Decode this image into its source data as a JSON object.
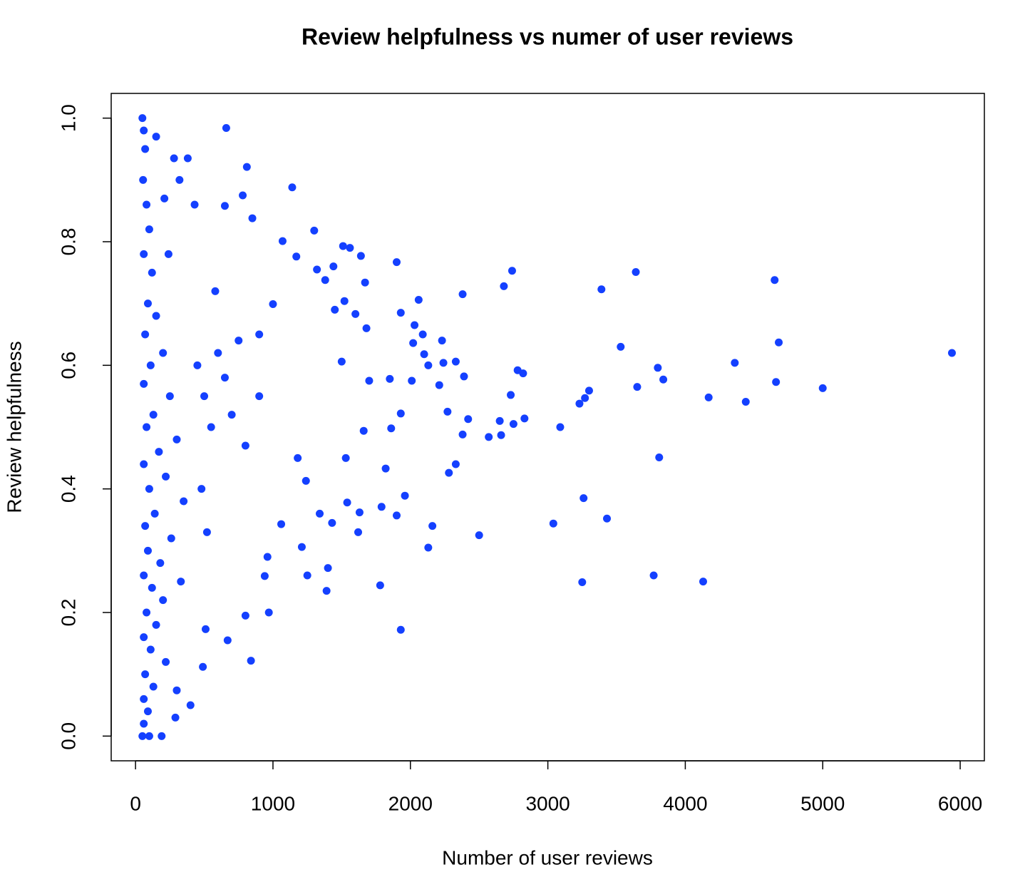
{
  "chart_data": {
    "type": "scatter",
    "title": "Review helpfulness vs numer of user reviews",
    "x_label": "Number of user reviews",
    "y_label": "Review helpfulness",
    "color": "#1440ff",
    "grid": false,
    "xlim": [
      -177,
      6176
    ],
    "ylim": [
      -0.04,
      1.04
    ],
    "xticks": [
      0,
      1000,
      2000,
      3000,
      4000,
      5000,
      6000
    ],
    "yticks": [
      {
        "value": 0,
        "label": "0.0"
      },
      0.2,
      0.4,
      0.6,
      0.8,
      {
        "value": 1,
        "label": "1.0"
      }
    ],
    "x": [
      5940,
      5000,
      4680,
      4650,
      4660,
      4440,
      4360,
      4170,
      4130,
      3840,
      3800,
      3810,
      3770,
      3640,
      3650,
      3530,
      3390,
      3430,
      3300,
      3270,
      3230,
      3260,
      3250,
      3090,
      3040,
      2830,
      2820,
      2780,
      2740,
      2730,
      2750,
      2680,
      2660,
      2650,
      2570,
      2500,
      2420,
      2380,
      2380,
      2390,
      2330,
      2330,
      2280,
      2270,
      2240,
      2230,
      2210,
      2160,
      2130,
      2130,
      2100,
      2090,
      2060,
      2030,
      2020,
      2010,
      1960,
      1930,
      1930,
      1930,
      1900,
      1900,
      1860,
      1850,
      1820,
      1790,
      1780,
      1700,
      1680,
      1670,
      1660,
      1640,
      1630,
      1620,
      1600,
      1560,
      1540,
      1530,
      1510,
      1520,
      1500,
      1450,
      1440,
      1430,
      1400,
      1390,
      1380,
      1340,
      1300,
      1320,
      1250,
      1240,
      1210,
      1180,
      1170,
      1140,
      1070,
      1060,
      1000,
      970,
      960,
      940,
      900,
      850,
      840,
      810,
      800,
      780,
      670,
      660,
      650,
      510,
      490,
      430,
      400,
      380,
      300,
      290,
      280,
      190,
      50,
      60,
      70,
      55,
      80,
      100,
      60,
      120,
      90,
      150,
      70,
      200,
      110,
      60,
      250,
      130,
      80,
      300,
      170,
      60,
      220,
      100,
      350,
      140,
      70,
      260,
      90,
      180,
      60,
      120,
      200,
      80,
      150,
      60,
      110,
      220,
      70,
      130,
      60,
      90,
      60,
      50,
      100,
      450,
      500,
      550,
      600,
      480,
      650,
      700,
      520,
      580,
      750,
      800,
      900,
      330,
      240,
      320,
      150,
      210
    ],
    "values": [
      0.62,
      0.563,
      0.637,
      0.738,
      0.573,
      0.541,
      0.604,
      0.548,
      0.25,
      0.577,
      0.596,
      0.451,
      0.26,
      0.751,
      0.565,
      0.63,
      0.723,
      0.352,
      0.559,
      0.547,
      0.538,
      0.385,
      0.249,
      0.5,
      0.344,
      0.514,
      0.587,
      0.592,
      0.753,
      0.552,
      0.505,
      0.728,
      0.487,
      0.51,
      0.484,
      0.325,
      0.513,
      0.488,
      0.715,
      0.582,
      0.44,
      0.606,
      0.426,
      0.525,
      0.604,
      0.64,
      0.568,
      0.34,
      0.305,
      0.6,
      0.618,
      0.65,
      0.706,
      0.665,
      0.636,
      0.575,
      0.389,
      0.522,
      0.172,
      0.685,
      0.767,
      0.357,
      0.498,
      0.578,
      0.433,
      0.371,
      0.244,
      0.575,
      0.66,
      0.734,
      0.494,
      0.777,
      0.362,
      0.33,
      0.683,
      0.79,
      0.378,
      0.45,
      0.793,
      0.704,
      0.606,
      0.69,
      0.76,
      0.345,
      0.272,
      0.235,
      0.738,
      0.36,
      0.818,
      0.755,
      0.26,
      0.413,
      0.306,
      0.45,
      0.776,
      0.888,
      0.801,
      0.343,
      0.699,
      0.2,
      0.29,
      0.259,
      0.65,
      0.838,
      0.122,
      0.921,
      0.195,
      0.875,
      0.155,
      0.984,
      0.858,
      0.173,
      0.112,
      0.86,
      0.05,
      0.935,
      0.074,
      0.03,
      0.935,
      0,
      1,
      0.98,
      0.95,
      0.9,
      0.86,
      0.82,
      0.78,
      0.75,
      0.7,
      0.68,
      0.65,
      0.62,
      0.6,
      0.57,
      0.55,
      0.52,
      0.5,
      0.48,
      0.46,
      0.44,
      0.42,
      0.4,
      0.38,
      0.36,
      0.34,
      0.32,
      0.3,
      0.28,
      0.26,
      0.24,
      0.22,
      0.2,
      0.18,
      0.16,
      0.14,
      0.12,
      0.1,
      0.08,
      0.06,
      0.04,
      0.02,
      0,
      0,
      0.6,
      0.55,
      0.5,
      0.62,
      0.4,
      0.58,
      0.52,
      0.33,
      0.72,
      0.64,
      0.47,
      0.55,
      0.25,
      0.78,
      0.9,
      0.97,
      0.87
    ]
  }
}
